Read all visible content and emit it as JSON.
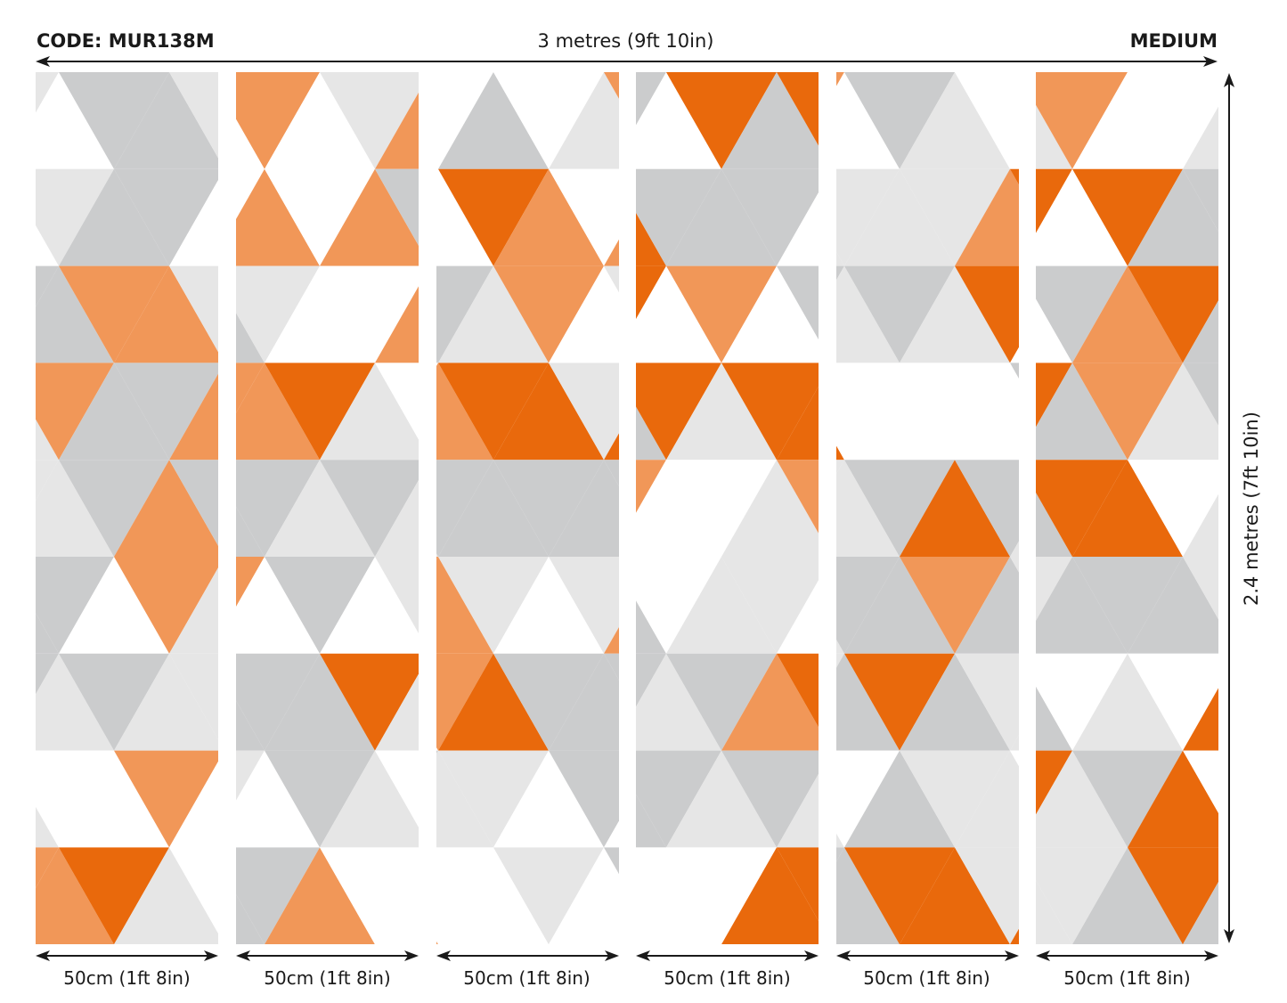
{
  "header": {
    "code": "CODE: MUR138M",
    "total_width": "3 metres (9ft 10in)",
    "size": "MEDIUM"
  },
  "total_height": "2.4 metres (7ft 10in)",
  "panels": [
    {
      "label": "50cm (1ft 8in)"
    },
    {
      "label": "50cm (1ft 8in)"
    },
    {
      "label": "50cm (1ft 8in)"
    },
    {
      "label": "50cm (1ft 8in)"
    },
    {
      "label": "50cm (1ft 8in)"
    },
    {
      "label": "50cm (1ft 8in)"
    }
  ],
  "colors": {
    "orange": "#e9690c",
    "light_orange": "#f19758",
    "gray": "#cbcccd",
    "light_gray": "#e6e6e6",
    "white": "#ffffff",
    "arrow": "#1a1a1a"
  }
}
